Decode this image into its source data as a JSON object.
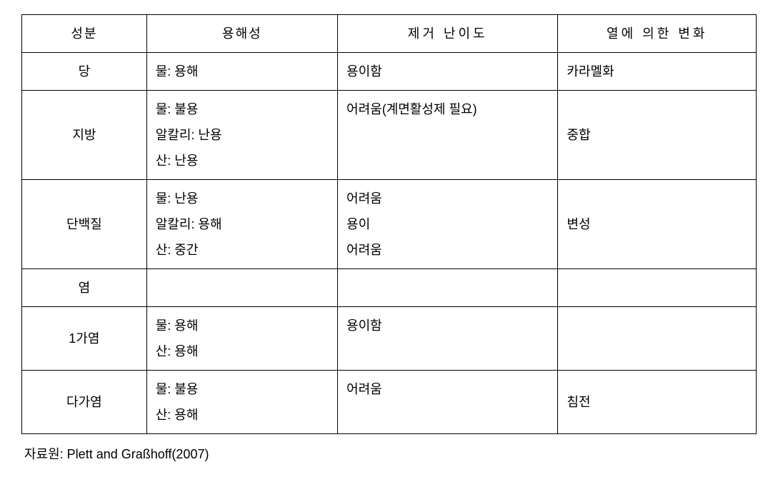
{
  "headers": {
    "component": "성분",
    "solubility": "용해성",
    "difficulty": "제거 난이도",
    "heat": "열에 의한 변화"
  },
  "rows": [
    {
      "component": "당",
      "solubility": [
        "물: 용해"
      ],
      "difficulty": [
        "용이함"
      ],
      "heat": [
        "카라멜화"
      ]
    },
    {
      "component": "지방",
      "solubility": [
        "물: 불용",
        "알칼리: 난용",
        "산: 난용"
      ],
      "difficulty": [
        "어려움(계면활성제 필요)"
      ],
      "heat": [
        "중합"
      ]
    },
    {
      "component": "단백질",
      "solubility": [
        "물: 난용",
        "알칼리: 용해",
        "산: 중간"
      ],
      "difficulty": [
        "어려움",
        "용이",
        "어려움"
      ],
      "heat": [
        "변성"
      ]
    },
    {
      "component": "염",
      "solubility": [],
      "difficulty": [],
      "heat": []
    },
    {
      "component": "1가염",
      "solubility": [
        "물: 용해",
        "산: 용해"
      ],
      "difficulty": [
        "용이함"
      ],
      "heat": []
    },
    {
      "component": "다가염",
      "solubility": [
        "물: 불용",
        "산: 용해"
      ],
      "difficulty": [
        "어려움"
      ],
      "heat": [
        "침전"
      ]
    }
  ],
  "source": "자료원: Plett and Graßhoff(2007)",
  "colWidths": {
    "component": "17%",
    "solubility": "26%",
    "difficulty": "30%",
    "heat": "27%"
  }
}
